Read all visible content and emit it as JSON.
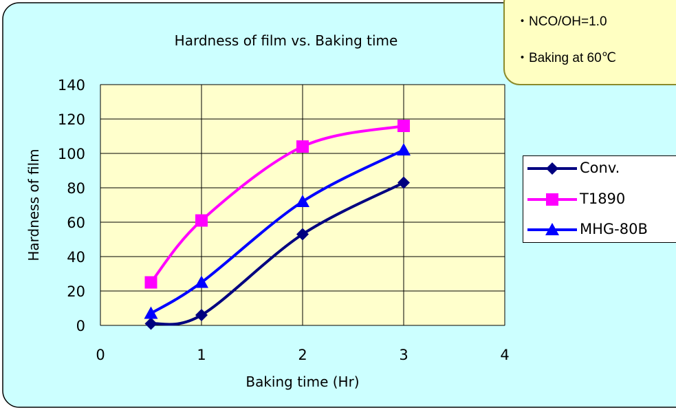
{
  "notes": [
    "・NCO/OH=1.0",
    "・Baking at 60℃"
  ],
  "chart_data": {
    "type": "line",
    "title": "Hardness of film vs. Baking time",
    "xlabel": "Baking time (Hr)",
    "ylabel": "Hardness of film",
    "xlim": [
      0,
      4
    ],
    "ylim": [
      0,
      140
    ],
    "xticks": [
      "0",
      "1",
      "2",
      "3",
      "4"
    ],
    "yticks": [
      "0",
      "20",
      "40",
      "60",
      "80",
      "100",
      "120",
      "140"
    ],
    "grid": true,
    "legend_position": "right",
    "plot_background": "#ffffcc",
    "chart_background": "#ccffff",
    "series": [
      {
        "name": "Conv.",
        "color": "#000080",
        "marker": "diamond",
        "x": [
          0.5,
          1,
          2,
          3
        ],
        "y": [
          1,
          6,
          53,
          83
        ]
      },
      {
        "name": "T1890",
        "color": "#ff00ff",
        "marker": "square",
        "x": [
          0.5,
          1,
          2,
          3
        ],
        "y": [
          25,
          61,
          104,
          116
        ]
      },
      {
        "name": "MHG-80B",
        "color": "#0000ff",
        "marker": "triangle",
        "x": [
          0.5,
          1,
          2,
          3
        ],
        "y": [
          7,
          25,
          72,
          102
        ]
      }
    ]
  }
}
